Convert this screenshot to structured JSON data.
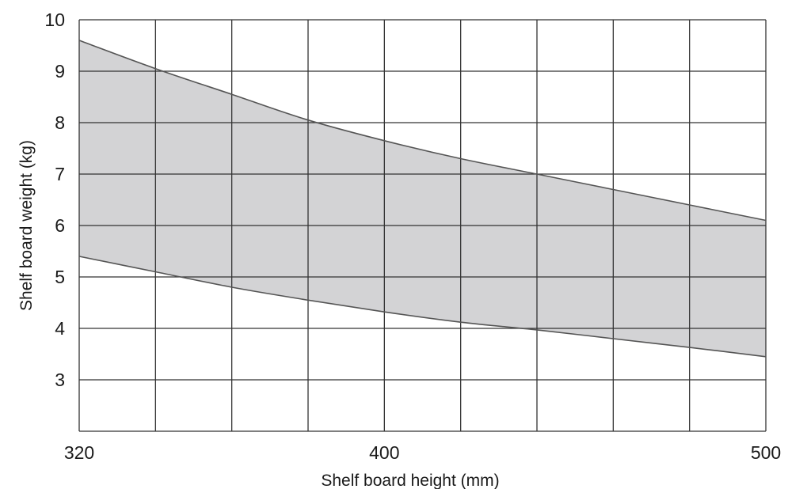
{
  "chart_data": {
    "type": "area",
    "title": "",
    "xlabel": "Shelf board height (mm)",
    "ylabel": "Shelf board weight (kg)",
    "xlim": [
      320,
      500
    ],
    "ylim": [
      2,
      10
    ],
    "x_ticks": [
      320,
      400,
      500
    ],
    "y_ticks": [
      3,
      4,
      5,
      6,
      7,
      8,
      9,
      10
    ],
    "x_gridlines": [
      320,
      340,
      360,
      380,
      400,
      420,
      440,
      460,
      480,
      500
    ],
    "y_gridlines": [
      3,
      4,
      5,
      6,
      7,
      8,
      9,
      10
    ],
    "grid": true,
    "fill_color": "#d3d3d5",
    "line_color": "#555555",
    "grid_color": "#333333",
    "series": [
      {
        "role": "upper",
        "x": [
          320,
          340,
          360,
          380,
          400,
          420,
          440,
          460,
          480,
          500
        ],
        "y": [
          9.6,
          9.05,
          8.55,
          8.05,
          7.65,
          7.3,
          7.0,
          6.7,
          6.4,
          6.1
        ]
      },
      {
        "role": "lower",
        "x": [
          320,
          340,
          360,
          380,
          400,
          420,
          440,
          460,
          480,
          500
        ],
        "y": [
          5.4,
          5.1,
          4.8,
          4.55,
          4.32,
          4.12,
          3.97,
          3.8,
          3.63,
          3.45
        ]
      }
    ]
  }
}
